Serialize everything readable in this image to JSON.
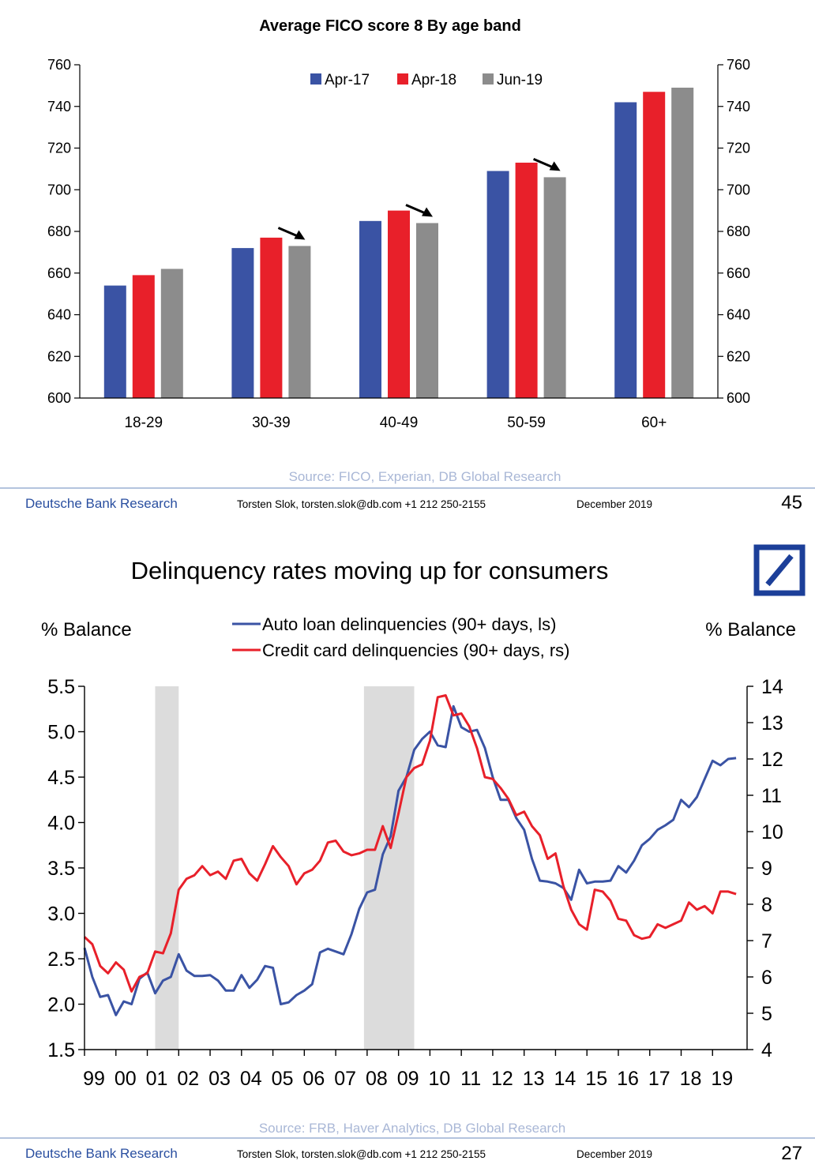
{
  "slides": [
    {
      "source": "Source: FICO, Experian, DB Global Research",
      "footer": {
        "brand": "Deutsche Bank Research",
        "author": "Torsten Slok, torsten.slok@db.com +1 212 250-2155",
        "date": "December 2019",
        "page": "45"
      }
    },
    {
      "title": "Delinquency rates moving up for consumers",
      "left_unit": "% Balance",
      "right_unit": "% Balance",
      "source": "Source: FRB, Haver Analytics, DB Global Research",
      "footer": {
        "brand": "Deutsche Bank Research",
        "author": "Torsten Slok, torsten.slok@db.com +1 212 250-2155",
        "date": "December 2019",
        "page": "27"
      }
    }
  ],
  "colors": {
    "blue": "#3a53a4",
    "red": "#e8202a",
    "gray": "#8c8c8c",
    "footer_blue": "#2a4fa0",
    "recession": "#dcdcdc"
  },
  "chart_data": [
    {
      "type": "bar",
      "title": "Average FICO score 8 By age band",
      "categories": [
        "18-29",
        "30-39",
        "40-49",
        "50-59",
        "60+"
      ],
      "series": [
        {
          "name": "Apr-17",
          "values": [
            654,
            672,
            685,
            709,
            742
          ]
        },
        {
          "name": "Apr-18",
          "values": [
            659,
            677,
            690,
            713,
            747
          ]
        },
        {
          "name": "Jun-19",
          "values": [
            662,
            673,
            684,
            706,
            749
          ]
        }
      ],
      "ylim": [
        600,
        760
      ],
      "yticks": [
        "600",
        "620",
        "640",
        "660",
        "680",
        "700",
        "720",
        "740",
        "760"
      ],
      "y2ticks": [
        "600",
        "620",
        "640",
        "660",
        "680",
        "700",
        "720",
        "740",
        "760"
      ],
      "legend": "top-center",
      "grid": false,
      "annotations": [
        "down-arrow 30-39",
        "down-arrow 40-49",
        "down-arrow 50-59"
      ]
    },
    {
      "type": "line",
      "x_ticks": [
        "99",
        "00",
        "01",
        "02",
        "03",
        "04",
        "05",
        "06",
        "07",
        "08",
        "09",
        "10",
        "11",
        "12",
        "13",
        "14",
        "15",
        "16",
        "17",
        "18",
        "19"
      ],
      "xlim": [
        1999,
        2020.1
      ],
      "ylim": [
        1.5,
        5.5
      ],
      "yticks": [
        "1.5",
        "2.0",
        "2.5",
        "3.0",
        "3.5",
        "4.0",
        "4.5",
        "5.0",
        "5.5"
      ],
      "y2lim": [
        4,
        14
      ],
      "y2ticks": [
        "4",
        "5",
        "6",
        "7",
        "8",
        "9",
        "10",
        "11",
        "12",
        "13",
        "14"
      ],
      "legend": "top-center",
      "grid": false,
      "recessions": [
        [
          2001.25,
          2002.0
        ],
        [
          2007.9,
          2009.5
        ]
      ],
      "series": [
        {
          "name": "Auto loan delinquencies (90+ days, ls)",
          "axis": "left",
          "x": [
            1999.0,
            1999.25,
            1999.5,
            1999.75,
            2000.0,
            2000.25,
            2000.5,
            2000.75,
            2001.0,
            2001.25,
            2001.5,
            2001.75,
            2002.0,
            2002.25,
            2002.5,
            2002.75,
            2003.0,
            2003.25,
            2003.5,
            2003.75,
            2004.0,
            2004.25,
            2004.5,
            2004.75,
            2005.0,
            2005.25,
            2005.5,
            2005.75,
            2006.0,
            2006.25,
            2006.5,
            2006.75,
            2007.0,
            2007.25,
            2007.5,
            2007.75,
            2008.0,
            2008.25,
            2008.5,
            2008.75,
            2009.0,
            2009.25,
            2009.5,
            2009.75,
            2010.0,
            2010.25,
            2010.5,
            2010.75,
            2011.0,
            2011.25,
            2011.5,
            2011.75,
            2012.0,
            2012.25,
            2012.5,
            2012.75,
            2013.0,
            2013.25,
            2013.5,
            2013.75,
            2014.0,
            2014.25,
            2014.5,
            2014.75,
            2015.0,
            2015.25,
            2015.5,
            2015.75,
            2016.0,
            2016.25,
            2016.5,
            2016.75,
            2017.0,
            2017.25,
            2017.5,
            2017.75,
            2018.0,
            2018.25,
            2018.5,
            2018.75,
            2019.0,
            2019.25,
            2019.5,
            2019.75
          ],
          "values": [
            2.62,
            2.3,
            2.08,
            2.1,
            1.88,
            2.03,
            2.0,
            2.28,
            2.35,
            2.12,
            2.26,
            2.3,
            2.55,
            2.37,
            2.31,
            2.31,
            2.32,
            2.26,
            2.15,
            2.15,
            2.32,
            2.18,
            2.27,
            2.42,
            2.4,
            2.0,
            2.02,
            2.1,
            2.15,
            2.22,
            2.57,
            2.61,
            2.58,
            2.55,
            2.77,
            3.05,
            3.23,
            3.26,
            3.65,
            3.85,
            4.35,
            4.5,
            4.8,
            4.92,
            5.0,
            4.85,
            4.83,
            5.28,
            5.05,
            5.0,
            5.02,
            4.82,
            4.5,
            4.25,
            4.25,
            4.05,
            3.92,
            3.6,
            3.36,
            3.35,
            3.33,
            3.28,
            3.15,
            3.48,
            3.33,
            3.35,
            3.35,
            3.36,
            3.52,
            3.45,
            3.58,
            3.75,
            3.82,
            3.92,
            3.97,
            4.03,
            4.25,
            4.17,
            4.28,
            4.48,
            4.68,
            4.63,
            4.7,
            4.71
          ]
        },
        {
          "name": "Credit card delinquencies (90+ days, rs)",
          "axis": "right",
          "x": [
            1999.0,
            1999.25,
            1999.5,
            1999.75,
            2000.0,
            2000.25,
            2000.5,
            2000.75,
            2001.0,
            2001.25,
            2001.5,
            2001.75,
            2002.0,
            2002.25,
            2002.5,
            2002.75,
            2003.0,
            2003.25,
            2003.5,
            2003.75,
            2004.0,
            2004.25,
            2004.5,
            2004.75,
            2005.0,
            2005.25,
            2005.5,
            2005.75,
            2006.0,
            2006.25,
            2006.5,
            2006.75,
            2007.0,
            2007.25,
            2007.5,
            2007.75,
            2008.0,
            2008.25,
            2008.5,
            2008.75,
            2009.0,
            2009.25,
            2009.5,
            2009.75,
            2010.0,
            2010.25,
            2010.5,
            2010.75,
            2011.0,
            2011.25,
            2011.5,
            2011.75,
            2012.0,
            2012.25,
            2012.5,
            2012.75,
            2013.0,
            2013.25,
            2013.5,
            2013.75,
            2014.0,
            2014.25,
            2014.5,
            2014.75,
            2015.0,
            2015.25,
            2015.5,
            2015.75,
            2016.0,
            2016.25,
            2016.5,
            2016.75,
            2017.0,
            2017.25,
            2017.5,
            2017.75,
            2018.0,
            2018.25,
            2018.5,
            2018.75,
            2019.0,
            2019.25,
            2019.5,
            2019.75
          ],
          "values": [
            7.1,
            6.9,
            6.3,
            6.1,
            6.4,
            6.2,
            5.6,
            6.0,
            6.1,
            6.7,
            6.65,
            7.2,
            8.4,
            8.7,
            8.8,
            9.05,
            8.8,
            8.9,
            8.7,
            9.2,
            9.25,
            8.85,
            8.65,
            9.1,
            9.6,
            9.3,
            9.05,
            8.55,
            8.85,
            8.95,
            9.2,
            9.7,
            9.75,
            9.45,
            9.35,
            9.4,
            9.5,
            9.5,
            10.15,
            9.55,
            10.5,
            11.5,
            11.75,
            11.85,
            12.5,
            13.7,
            13.75,
            13.2,
            13.25,
            12.9,
            12.3,
            11.5,
            11.45,
            11.2,
            10.9,
            10.45,
            10.55,
            10.15,
            9.9,
            9.25,
            9.4,
            8.5,
            7.85,
            7.45,
            7.3,
            8.4,
            8.35,
            8.1,
            7.6,
            7.55,
            7.15,
            7.05,
            7.1,
            7.45,
            7.35,
            7.45,
            7.55,
            8.05,
            7.85,
            7.95,
            7.75,
            8.35,
            8.35,
            8.28
          ]
        }
      ]
    }
  ]
}
